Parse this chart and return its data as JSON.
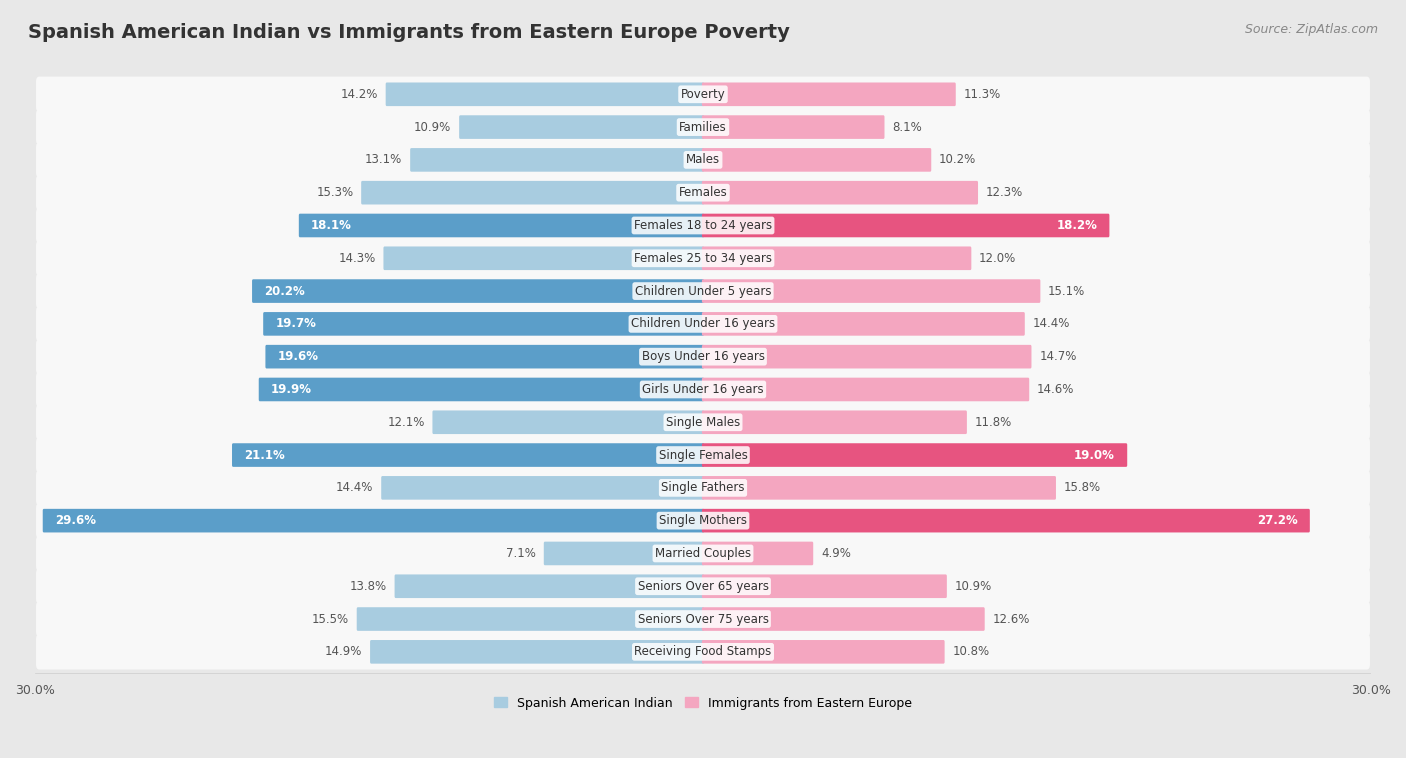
{
  "title": "Spanish American Indian vs Immigrants from Eastern Europe Poverty",
  "source": "Source: ZipAtlas.com",
  "categories": [
    "Poverty",
    "Families",
    "Males",
    "Females",
    "Females 18 to 24 years",
    "Females 25 to 34 years",
    "Children Under 5 years",
    "Children Under 16 years",
    "Boys Under 16 years",
    "Girls Under 16 years",
    "Single Males",
    "Single Females",
    "Single Fathers",
    "Single Mothers",
    "Married Couples",
    "Seniors Over 65 years",
    "Seniors Over 75 years",
    "Receiving Food Stamps"
  ],
  "left_values": [
    14.2,
    10.9,
    13.1,
    15.3,
    18.1,
    14.3,
    20.2,
    19.7,
    19.6,
    19.9,
    12.1,
    21.1,
    14.4,
    29.6,
    7.1,
    13.8,
    15.5,
    14.9
  ],
  "right_values": [
    11.3,
    8.1,
    10.2,
    12.3,
    18.2,
    12.0,
    15.1,
    14.4,
    14.7,
    14.6,
    11.8,
    19.0,
    15.8,
    27.2,
    4.9,
    10.9,
    12.6,
    10.8
  ],
  "left_color": "#a8cce0",
  "right_color": "#f4a6c0",
  "left_label": "Spanish American Indian",
  "right_label": "Immigrants from Eastern Europe",
  "left_highlight_color": "#5b9ec9",
  "right_highlight_color": "#e75480",
  "highlight_threshold": 18.0,
  "xlim": 30.0,
  "page_background": "#e8e8e8",
  "row_background": "#f8f8f8",
  "title_fontsize": 14,
  "source_fontsize": 9,
  "label_fontsize": 8.5,
  "value_fontsize": 8.5,
  "legend_fontsize": 9,
  "axis_label_fontsize": 9
}
